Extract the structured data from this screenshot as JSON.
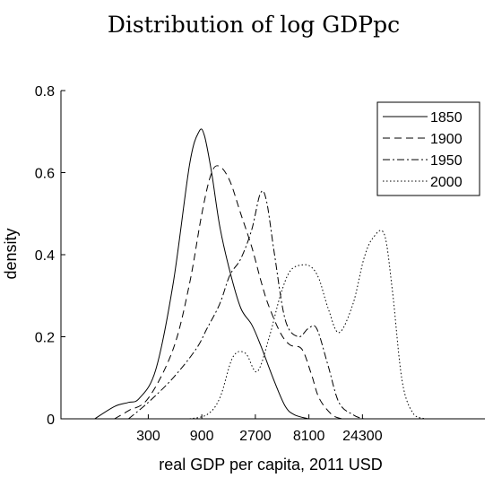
{
  "chart_data": {
    "type": "line",
    "title": "Distribution of log GDPpc",
    "xlabel": "real GDP per capita, 2011 USD",
    "ylabel": "density",
    "xscale": "log",
    "xlim": [
      50,
      300000
    ],
    "ylim": [
      0,
      0.8
    ],
    "xticks": [
      300,
      900,
      2700,
      8100,
      24300
    ],
    "xtick_labels": [
      "300",
      "900",
      "2700",
      "8100",
      "24300"
    ],
    "yticks": [
      0,
      0.2,
      0.4,
      0.6,
      0.8
    ],
    "ytick_labels": [
      "0",
      "0.2",
      "0.4",
      "0.6",
      "0.8"
    ],
    "grid": false,
    "legend_position": "top-right",
    "series": [
      {
        "name": "1850",
        "dash": "solid",
        "x": [
          100,
          150,
          200,
          250,
          350,
          500,
          700,
          850,
          950,
          1100,
          1300,
          1600,
          2000,
          2500,
          3000,
          4000,
          5000,
          6000,
          8000
        ],
        "y": [
          0.0,
          0.03,
          0.04,
          0.05,
          0.12,
          0.33,
          0.62,
          0.7,
          0.69,
          0.6,
          0.47,
          0.36,
          0.27,
          0.23,
          0.18,
          0.09,
          0.03,
          0.01,
          0.0
        ]
      },
      {
        "name": "1900",
        "dash": "dashed",
        "x": [
          150,
          200,
          300,
          500,
          700,
          900,
          1100,
          1300,
          1600,
          2000,
          2500,
          3000,
          3500,
          4500,
          5500,
          7000,
          8500,
          10000,
          13000,
          16000
        ],
        "y": [
          0.0,
          0.02,
          0.05,
          0.17,
          0.33,
          0.5,
          0.6,
          0.615,
          0.58,
          0.5,
          0.42,
          0.34,
          0.28,
          0.21,
          0.18,
          0.17,
          0.11,
          0.05,
          0.01,
          0.0
        ]
      },
      {
        "name": "1950",
        "dash": "dashdot",
        "x": [
          200,
          300,
          500,
          800,
          1000,
          1300,
          1600,
          2000,
          2500,
          3000,
          3400,
          4000,
          5000,
          6500,
          8000,
          9500,
          12000,
          15000,
          20000,
          25000,
          30000
        ],
        "y": [
          0.0,
          0.04,
          0.1,
          0.17,
          0.22,
          0.28,
          0.35,
          0.39,
          0.46,
          0.55,
          0.53,
          0.4,
          0.24,
          0.2,
          0.22,
          0.22,
          0.13,
          0.04,
          0.01,
          0.0,
          0.0
        ]
      },
      {
        "name": "2000",
        "dash": "dotted",
        "x": [
          700,
          1000,
          1300,
          1700,
          2200,
          2800,
          3600,
          4500,
          5500,
          7000,
          8500,
          10000,
          12000,
          15000,
          20000,
          25000,
          30000,
          38000,
          45000,
          55000,
          70000,
          90000
        ],
        "y": [
          0.0,
          0.01,
          0.05,
          0.15,
          0.16,
          0.115,
          0.2,
          0.3,
          0.36,
          0.375,
          0.37,
          0.34,
          0.27,
          0.21,
          0.28,
          0.39,
          0.44,
          0.45,
          0.31,
          0.09,
          0.01,
          0.0
        ]
      }
    ]
  }
}
